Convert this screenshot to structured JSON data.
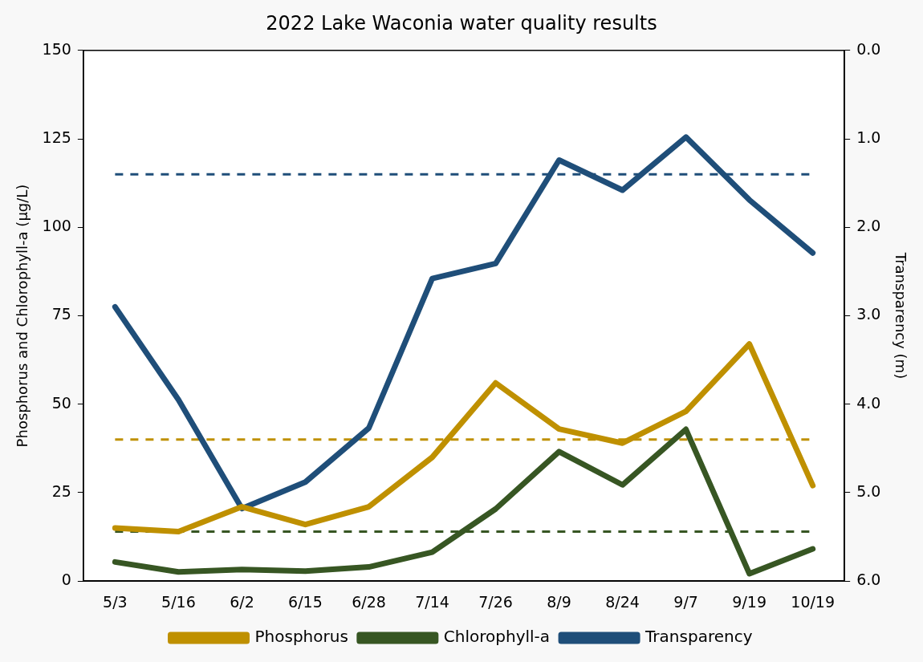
{
  "chart_data": {
    "type": "line",
    "title": "2022 Lake Waconia water quality results",
    "categories": [
      "5/3",
      "5/16",
      "6/2",
      "6/15",
      "6/28",
      "7/14",
      "7/26",
      "8/9",
      "8/24",
      "9/7",
      "9/19",
      "10/19"
    ],
    "y_label": "Phosphorus and Chlorophyll-a (µg/L)",
    "y2_label": "Transparency (m)",
    "ylim": [
      0,
      150
    ],
    "yticks": [
      0,
      25,
      50,
      75,
      100,
      125,
      150
    ],
    "y2lim": [
      6,
      0
    ],
    "y2ticks": [
      {
        "value": 0,
        "label": "0.0"
      },
      {
        "value": 1,
        "label": "1.0"
      },
      {
        "value": 2,
        "label": "2.0"
      },
      {
        "value": 3,
        "label": "3.0"
      },
      {
        "value": 4,
        "label": "4.0"
      },
      {
        "value": 5,
        "label": "5.0"
      },
      {
        "value": 6,
        "label": "6.0"
      }
    ],
    "grid": false,
    "legend": "bottom",
    "series": [
      {
        "name": "Phosphorus",
        "color": "#BF9000",
        "values": [
          15,
          14,
          21,
          16,
          21,
          35,
          56,
          43,
          39,
          48,
          67,
          27
        ],
        "standard": 40
      },
      {
        "name": "Chlorophyll-a",
        "color": "#375623",
        "values": [
          5.4,
          2.6,
          3.3,
          2.8,
          4,
          8.2,
          20.4,
          36.6,
          27.2,
          42.9,
          2.1,
          9.1
        ],
        "standard": 14
      },
      {
        "name": "Transparency",
        "color": "#1F4E79",
        "axis": "y2",
        "values": [
          2.9,
          3.95,
          5.18,
          4.88,
          4.27,
          2.58,
          2.41,
          1.24,
          1.58,
          0.98,
          1.69,
          2.29
        ],
        "standard": 1.4
      }
    ]
  }
}
